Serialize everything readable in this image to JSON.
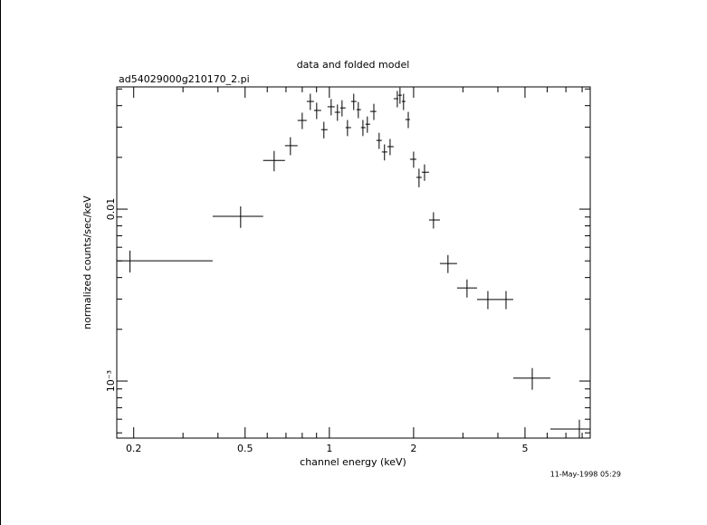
{
  "chart_data": {
    "type": "errorbar",
    "title": "data and folded model",
    "subtitle": "ad54029000g210170_2.pi",
    "xlabel": "channel energy (keV)",
    "ylabel": "normalized counts/sec/keV",
    "timestamp": "11-May-1998 05:29",
    "xlog": true,
    "ylog": true,
    "color": "#000000",
    "xlim": [
      0.174,
      8.55
    ],
    "ylim": [
      0.000466,
      0.0514
    ],
    "xticks": [
      0.2,
      0.5,
      1,
      2,
      5
    ],
    "xminorticks": [
      0.3,
      0.4,
      0.6,
      0.7,
      0.8,
      0.9,
      3,
      4,
      6,
      7,
      8
    ],
    "yticks": [
      {
        "value": 0.001,
        "label": "10⁻³"
      },
      0.01
    ],
    "yminorticks": [
      0.0005,
      0.0006,
      0.0007,
      0.0008,
      0.0009,
      0.002,
      0.003,
      0.004,
      0.005,
      0.006,
      0.007,
      0.008,
      0.009,
      0.02,
      0.03,
      0.04,
      0.05
    ],
    "x": [
      0.194,
      0.482,
      0.635,
      0.726,
      0.8,
      0.855,
      0.901,
      0.956,
      1.015,
      1.069,
      1.11,
      1.161,
      1.222,
      1.269,
      1.318,
      1.367,
      1.442,
      1.506,
      1.574,
      1.648,
      1.749,
      1.788,
      1.841,
      1.914,
      2.0,
      2.091,
      2.188,
      2.355,
      2.653,
      3.103,
      3.684,
      4.277,
      5.308,
      7.82
    ],
    "x_low": [
      0.174,
      0.383,
      0.58,
      0.694,
      0.77,
      0.83,
      0.881,
      0.935,
      0.985,
      1.045,
      1.094,
      1.143,
      1.196,
      1.25,
      1.297,
      1.346,
      1.399,
      1.472,
      1.54,
      1.611,
      1.698,
      1.762,
      1.815,
      1.87,
      1.941,
      2.046,
      2.138,
      2.27,
      2.482,
      2.859,
      3.371,
      3.97,
      4.539,
      6.16
    ],
    "x_high": [
      0.383,
      0.58,
      0.694,
      0.77,
      0.83,
      0.881,
      0.935,
      0.985,
      1.045,
      1.094,
      1.143,
      1.196,
      1.25,
      1.297,
      1.346,
      1.399,
      1.472,
      1.54,
      1.611,
      1.698,
      1.762,
      1.815,
      1.87,
      1.941,
      2.046,
      2.138,
      2.27,
      2.482,
      2.859,
      3.371,
      3.97,
      4.539,
      6.16,
      8.55
    ],
    "y": [
      0.00501,
      0.00908,
      0.0192,
      0.0234,
      0.0328,
      0.0423,
      0.0375,
      0.029,
      0.0394,
      0.0366,
      0.0388,
      0.0298,
      0.0423,
      0.0379,
      0.0298,
      0.0312,
      0.037,
      0.0251,
      0.0215,
      0.0231,
      0.0439,
      0.046,
      0.0423,
      0.0332,
      0.0195,
      0.0153,
      0.0164,
      0.00865,
      0.00483,
      0.00348,
      0.00298,
      0.00298,
      0.00104,
      0.000526
    ],
    "yerr": [
      0.00073,
      0.0013,
      0.0026,
      0.0028,
      0.0036,
      0.0046,
      0.0041,
      0.0032,
      0.0043,
      0.004,
      0.0042,
      0.0032,
      0.0046,
      0.0041,
      0.0032,
      0.0034,
      0.004,
      0.0027,
      0.0023,
      0.0025,
      0.0048,
      0.005,
      0.0046,
      0.0036,
      0.0021,
      0.0019,
      0.0018,
      0.00094,
      0.00058,
      0.00042,
      0.00036,
      0.00036,
      0.00015,
      7e-05
    ]
  }
}
